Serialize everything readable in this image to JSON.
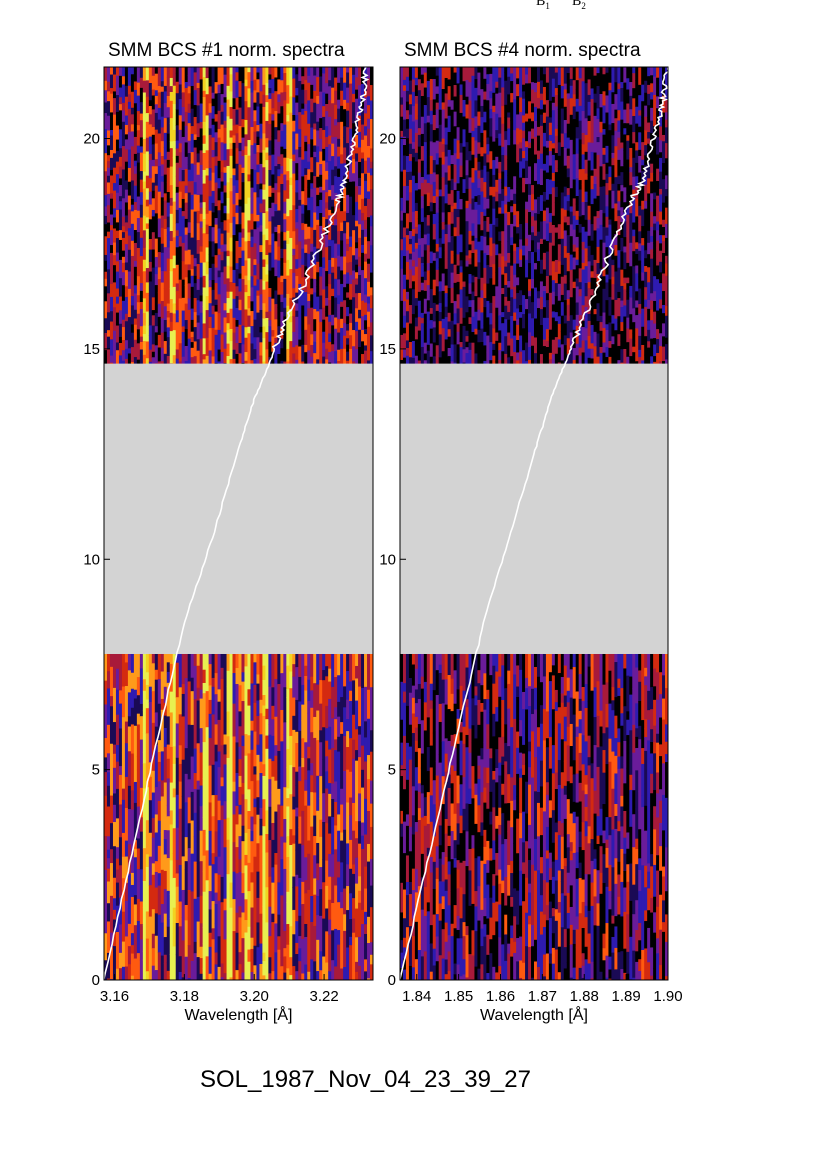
{
  "top_labels": [
    {
      "main": "B",
      "sub": "1"
    },
    {
      "main": "B",
      "sub": "2"
    }
  ],
  "footer": "SOL_1987_Nov_04_23_39_27",
  "colors": {
    "gap": "#d3d3d3",
    "curve": "#ffffff",
    "colormap": [
      "#000000",
      "#1a0a55",
      "#2e1bb0",
      "#6a1c9a",
      "#a81a3a",
      "#d42a10",
      "#ff5a10",
      "#ff9a1a",
      "#f2d320",
      "#e8f050"
    ]
  },
  "chart_data": [
    {
      "type": "heatmap",
      "title": "SMM BCS #1 norm. spectra",
      "xlabel": "Wavelength [Å]",
      "ylabel": "",
      "xlim": [
        3.157,
        3.234
      ],
      "ylim": [
        0,
        21.7
      ],
      "xticks": [
        "3.16",
        "3.18",
        "3.20",
        "3.22"
      ],
      "xtick_values": [
        3.16,
        3.18,
        3.2,
        3.22
      ],
      "yticks": [
        "0",
        "5",
        "10",
        "15",
        "20"
      ],
      "ytick_values": [
        0,
        5,
        10,
        15,
        20
      ],
      "data_gap": [
        7.75,
        14.65
      ],
      "bright_lines": [
        3.169,
        3.177,
        3.186,
        3.193,
        3.198,
        3.203,
        3.21
      ],
      "curve": {
        "x": [
          3.157,
          3.165,
          3.173,
          3.18,
          3.188,
          3.195,
          3.2,
          3.205,
          3.208,
          3.214,
          3.219,
          3.224,
          3.226,
          3.228,
          3.23,
          3.231,
          3.232
        ],
        "y": [
          0,
          3.0,
          6.0,
          8.5,
          10.5,
          12.5,
          13.8,
          14.8,
          15.5,
          16.5,
          17.5,
          18.5,
          19.0,
          19.8,
          20.5,
          21.0,
          21.7
        ]
      }
    },
    {
      "type": "heatmap",
      "title": "SMM BCS #4 norm. spectra",
      "xlabel": "Wavelength [Å]",
      "ylabel": "",
      "xlim": [
        1.836,
        1.9
      ],
      "ylim": [
        0,
        21.7
      ],
      "xticks": [
        "1.84",
        "1.85",
        "1.86",
        "1.87",
        "1.88",
        "1.89",
        "1.90"
      ],
      "xtick_values": [
        1.84,
        1.85,
        1.86,
        1.87,
        1.88,
        1.89,
        1.9
      ],
      "yticks": [
        "0",
        "5",
        "10",
        "15",
        "20"
      ],
      "ytick_values": [
        0,
        5,
        10,
        15,
        20
      ],
      "data_gap": [
        7.75,
        14.65
      ],
      "bright_lines": [],
      "curve": {
        "x": [
          1.836,
          1.843,
          1.85,
          1.856,
          1.862,
          1.868,
          1.872,
          1.876,
          1.879,
          1.883,
          1.887,
          1.891,
          1.894,
          1.896,
          1.898,
          1.899,
          1.9
        ],
        "y": [
          0,
          3.0,
          6.0,
          8.5,
          10.5,
          12.5,
          13.8,
          14.8,
          15.5,
          16.5,
          17.5,
          18.5,
          19.0,
          19.8,
          20.5,
          21.0,
          21.7
        ]
      }
    }
  ]
}
